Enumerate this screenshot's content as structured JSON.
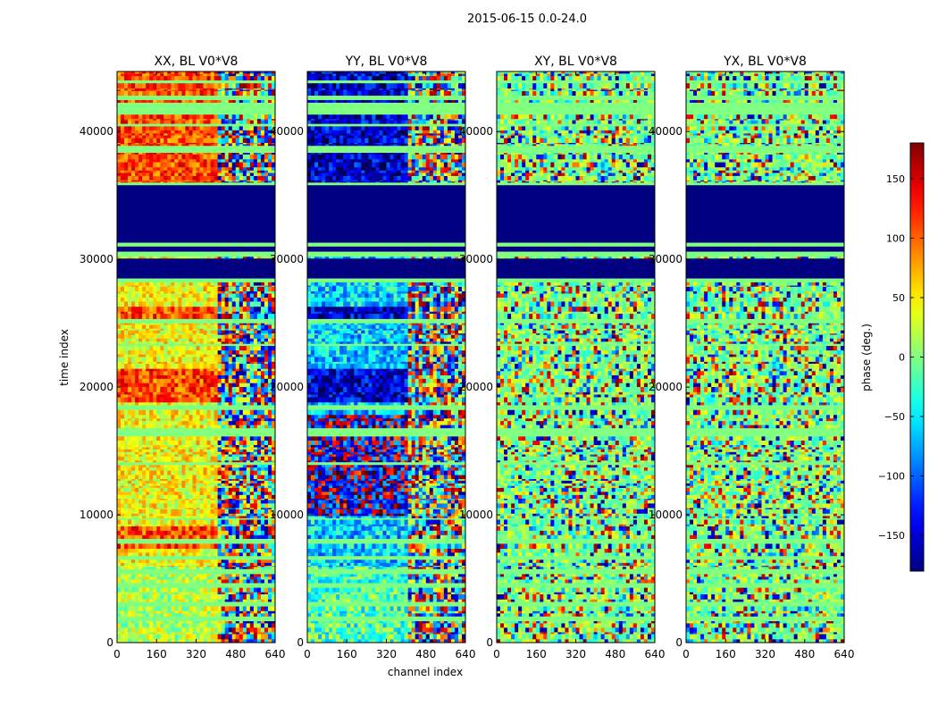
{
  "figure": {
    "suptitle": "2015-06-15 0.0-24.0"
  },
  "chart_data": {
    "type": "heatmap",
    "xlabel": "channel index",
    "ylabel": "time index",
    "xlim": [
      0,
      640
    ],
    "ylim": [
      0,
      44700
    ],
    "xticks": [
      0,
      160,
      320,
      480,
      640
    ],
    "yticks": [
      0,
      10000,
      20000,
      30000,
      40000
    ],
    "panels": [
      {
        "title": "XX, BL V0*V8",
        "style": "xx"
      },
      {
        "title": "YY, BL V0*V8",
        "style": "yy"
      },
      {
        "title": "XY, BL V0*V8",
        "style": "cross"
      },
      {
        "title": "YX, BL V0*V8",
        "style": "cross"
      }
    ],
    "colorbar": {
      "label": "phase (deg.)",
      "range": [
        -180,
        180
      ],
      "ticks": [
        150,
        100,
        50,
        0,
        -50,
        -100,
        -150
      ],
      "tick_labels": [
        "150",
        "100",
        "50",
        "0",
        "−50",
        "−100",
        "−150"
      ],
      "colormap": "jet"
    },
    "flagged_bands": [
      [
        28500,
        30200
      ],
      [
        30600,
        31000
      ],
      [
        31300,
        35800
      ]
    ],
    "flag_value_deg": -180
  }
}
